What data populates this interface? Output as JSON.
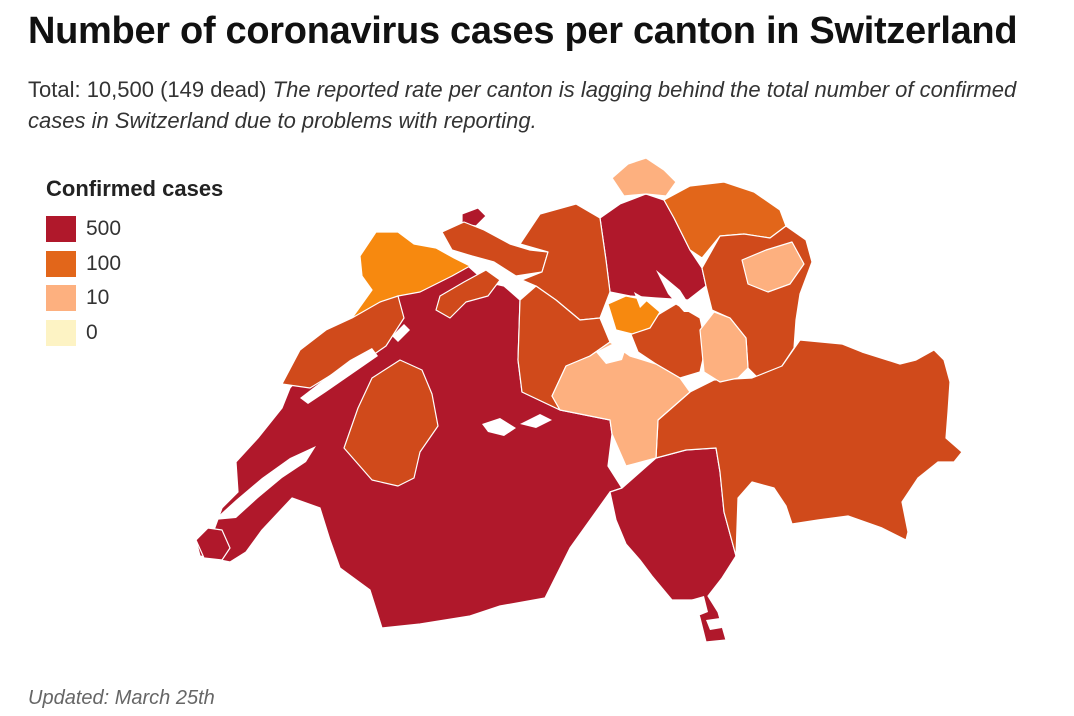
{
  "header": {
    "title": "Number of coronavirus cases per canton in Switzerland",
    "subtitle_total": "Total: 10,500 (149 dead)",
    "subtitle_note": "The reported rate per canton is lagging behind the total number of confirmed cases in Switzerland due to problems with reporting."
  },
  "legend": {
    "title": "Confirmed cases",
    "items": [
      {
        "label": "500",
        "color": "#b0182b"
      },
      {
        "label": "100",
        "color": "#e2661a"
      },
      {
        "label": "10",
        "color": "#fdb07f"
      },
      {
        "label": "0",
        "color": "#fdf3c4"
      }
    ]
  },
  "map": {
    "scale_colors": {
      "dark_red": "#b0182b",
      "red_orange": "#d04a1b",
      "orange": "#e2661a",
      "light_orange": "#f7890f",
      "peach": "#fdb07f",
      "lake": "#ffffff"
    }
  },
  "footer": {
    "updated": "Updated: March 25th"
  }
}
